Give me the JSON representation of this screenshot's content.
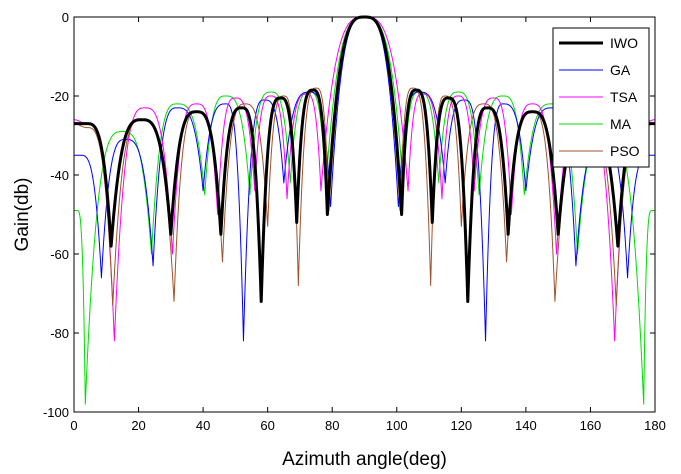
{
  "chart_data": {
    "type": "line",
    "title": "",
    "xlabel": "Azimuth angle(deg)",
    "ylabel": "Gain(db)",
    "xlim": [
      0,
      180
    ],
    "ylim": [
      -100,
      0
    ],
    "x_ticks": [
      0,
      20,
      40,
      60,
      80,
      100,
      120,
      140,
      160,
      180
    ],
    "x_tick_labels": [
      "0",
      "20",
      "40",
      "60",
      "80",
      "100",
      "120",
      "140",
      "160",
      "180"
    ],
    "y_ticks": [
      0,
      -20,
      -40,
      -60,
      -80,
      -100
    ],
    "y_tick_labels": [
      "0",
      "-20",
      "-40",
      "-60",
      "-80",
      "-100"
    ],
    "grid": false,
    "legend_position": "top-right",
    "series": [
      {
        "name": "IWO",
        "color": "#000000",
        "peak": {
          "x": 90,
          "y": 0
        },
        "nulls": [
          {
            "x": 11.5,
            "y": -58
          },
          {
            "x": 30,
            "y": -55
          },
          {
            "x": 45.5,
            "y": -55
          },
          {
            "x": 58,
            "y": -72
          },
          {
            "x": 69,
            "y": -52
          },
          {
            "x": 78.5,
            "y": -50
          },
          {
            "x": 101.5,
            "y": -50
          },
          {
            "x": 111,
            "y": -52
          },
          {
            "x": 122,
            "y": -72
          },
          {
            "x": 134.5,
            "y": -55
          },
          {
            "x": 150,
            "y": -55
          },
          {
            "x": 168.5,
            "y": -58
          }
        ],
        "sidelobes": [
          {
            "x": 0,
            "y": -27
          },
          {
            "x": 4,
            "y": -27
          },
          {
            "x": 21,
            "y": -26
          },
          {
            "x": 38,
            "y": -24
          },
          {
            "x": 52,
            "y": -23
          },
          {
            "x": 64,
            "y": -20.5
          },
          {
            "x": 74,
            "y": -18.5
          },
          {
            "x": 106,
            "y": -18.5
          },
          {
            "x": 116,
            "y": -20.5
          },
          {
            "x": 128,
            "y": -23
          },
          {
            "x": 142,
            "y": -24
          },
          {
            "x": 159,
            "y": -26
          },
          {
            "x": 176,
            "y": -27
          },
          {
            "x": 180,
            "y": -27
          }
        ]
      },
      {
        "name": "GA",
        "color": "#0000ff",
        "peak": {
          "x": 90,
          "y": 0
        },
        "nulls": [
          {
            "x": 8.5,
            "y": -66
          },
          {
            "x": 24.5,
            "y": -63
          },
          {
            "x": 40,
            "y": -44
          },
          {
            "x": 52.5,
            "y": -82
          },
          {
            "x": 65,
            "y": -42
          },
          {
            "x": 79.5,
            "y": -48
          },
          {
            "x": 100.5,
            "y": -48
          },
          {
            "x": 115,
            "y": -42
          },
          {
            "x": 127.5,
            "y": -82
          },
          {
            "x": 140,
            "y": -44
          },
          {
            "x": 155.5,
            "y": -63
          },
          {
            "x": 171.5,
            "y": -66
          }
        ],
        "sidelobes": [
          {
            "x": 0,
            "y": -35
          },
          {
            "x": 2,
            "y": -35
          },
          {
            "x": 16,
            "y": -31
          },
          {
            "x": 32,
            "y": -23
          },
          {
            "x": 47,
            "y": -22
          },
          {
            "x": 59,
            "y": -21
          },
          {
            "x": 73,
            "y": -19
          },
          {
            "x": 107,
            "y": -19
          },
          {
            "x": 121,
            "y": -21
          },
          {
            "x": 133,
            "y": -22
          },
          {
            "x": 148,
            "y": -23
          },
          {
            "x": 164,
            "y": -31
          },
          {
            "x": 178,
            "y": -35
          },
          {
            "x": 180,
            "y": -35
          }
        ]
      },
      {
        "name": "TSA",
        "color": "#ff00ff",
        "peak": {
          "x": 90,
          "y": 0
        },
        "nulls": [
          {
            "x": 12.5,
            "y": -82
          },
          {
            "x": 30.5,
            "y": -60
          },
          {
            "x": 44.5,
            "y": -50
          },
          {
            "x": 56,
            "y": -44
          },
          {
            "x": 66,
            "y": -46
          },
          {
            "x": 76.5,
            "y": -44
          },
          {
            "x": 103.5,
            "y": -44
          },
          {
            "x": 114,
            "y": -46
          },
          {
            "x": 124,
            "y": -44
          },
          {
            "x": 135.5,
            "y": -50
          },
          {
            "x": 149.5,
            "y": -60
          },
          {
            "x": 167.5,
            "y": -82
          }
        ],
        "sidelobes": [
          {
            "x": 0,
            "y": -26
          },
          {
            "x": 4,
            "y": -27
          },
          {
            "x": 22,
            "y": -23
          },
          {
            "x": 38,
            "y": -22
          },
          {
            "x": 50,
            "y": -20.5
          },
          {
            "x": 61,
            "y": -20
          },
          {
            "x": 72,
            "y": -19.5
          },
          {
            "x": 108,
            "y": -19.5
          },
          {
            "x": 119,
            "y": -20
          },
          {
            "x": 130,
            "y": -20.5
          },
          {
            "x": 142,
            "y": -22
          },
          {
            "x": 158,
            "y": -23
          },
          {
            "x": 176,
            "y": -27
          },
          {
            "x": 180,
            "y": -26
          }
        ]
      },
      {
        "name": "MA",
        "color": "#00dd00",
        "peak": {
          "x": 90,
          "y": 0
        },
        "nulls": [
          {
            "x": 3.5,
            "y": -98
          },
          {
            "x": 24,
            "y": -60
          },
          {
            "x": 40.5,
            "y": -45
          },
          {
            "x": 54.5,
            "y": -45
          },
          {
            "x": 67,
            "y": -42
          },
          {
            "x": 78,
            "y": -43
          },
          {
            "x": 102,
            "y": -43
          },
          {
            "x": 113,
            "y": -42
          },
          {
            "x": 125.5,
            "y": -45
          },
          {
            "x": 139.5,
            "y": -45
          },
          {
            "x": 156,
            "y": -60
          },
          {
            "x": 176.5,
            "y": -98
          }
        ],
        "sidelobes": [
          {
            "x": 0,
            "y": -49
          },
          {
            "x": 1,
            "y": -49
          },
          {
            "x": 15,
            "y": -29
          },
          {
            "x": 32,
            "y": -22
          },
          {
            "x": 47,
            "y": -20
          },
          {
            "x": 61,
            "y": -19
          },
          {
            "x": 73,
            "y": -19
          },
          {
            "x": 107,
            "y": -19
          },
          {
            "x": 119,
            "y": -19
          },
          {
            "x": 133,
            "y": -20
          },
          {
            "x": 148,
            "y": -22
          },
          {
            "x": 165,
            "y": -29
          },
          {
            "x": 179,
            "y": -49
          },
          {
            "x": 180,
            "y": -49
          }
        ]
      },
      {
        "name": "PSO",
        "color": "#a0522d",
        "peak": {
          "x": 90,
          "y": 0
        },
        "nulls": [
          {
            "x": 12,
            "y": -73
          },
          {
            "x": 31,
            "y": -72
          },
          {
            "x": 46,
            "y": -62
          },
          {
            "x": 60,
            "y": -53
          },
          {
            "x": 69.5,
            "y": -68
          },
          {
            "x": 79,
            "y": -49
          },
          {
            "x": 101,
            "y": -49
          },
          {
            "x": 110.5,
            "y": -68
          },
          {
            "x": 120,
            "y": -53
          },
          {
            "x": 134,
            "y": -62
          },
          {
            "x": 149,
            "y": -72
          },
          {
            "x": 168,
            "y": -73
          }
        ],
        "sidelobes": [
          {
            "x": 0,
            "y": -27
          },
          {
            "x": 4,
            "y": -28
          },
          {
            "x": 21,
            "y": -26
          },
          {
            "x": 38,
            "y": -24
          },
          {
            "x": 53,
            "y": -22
          },
          {
            "x": 65,
            "y": -20
          },
          {
            "x": 75,
            "y": -18
          },
          {
            "x": 105,
            "y": -18
          },
          {
            "x": 115,
            "y": -20
          },
          {
            "x": 127,
            "y": -22
          },
          {
            "x": 142,
            "y": -24
          },
          {
            "x": 159,
            "y": -26
          },
          {
            "x": 176,
            "y": -28
          },
          {
            "x": 180,
            "y": -27
          }
        ]
      }
    ]
  }
}
